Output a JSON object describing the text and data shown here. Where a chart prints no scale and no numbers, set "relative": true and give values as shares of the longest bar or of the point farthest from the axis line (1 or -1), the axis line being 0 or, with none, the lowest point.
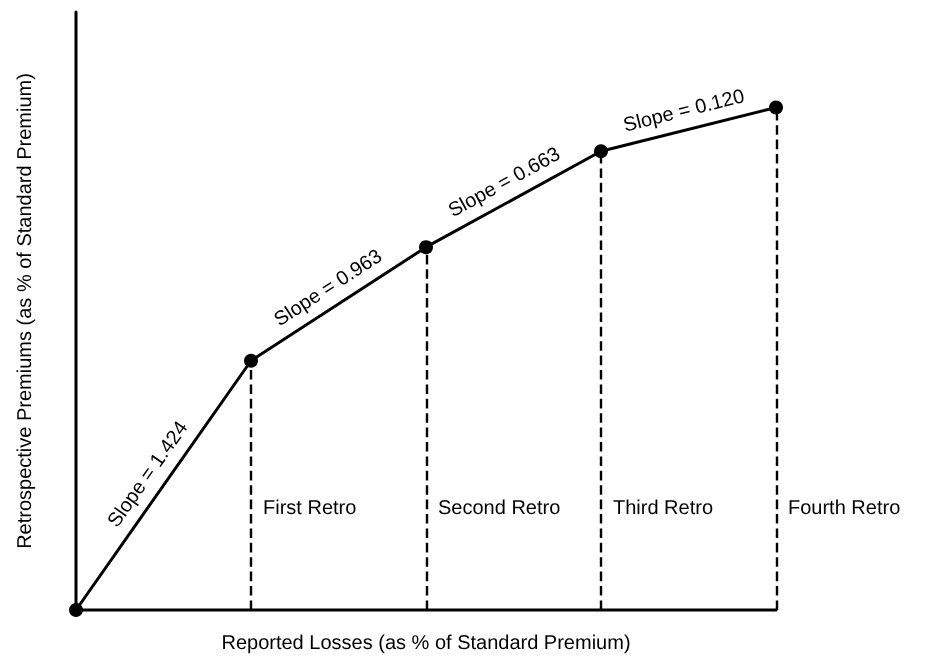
{
  "chart_data": {
    "type": "line",
    "relative": true,
    "xlabel": "Reported Losses (as % of Standard Premium)",
    "ylabel": "Retrospective Premiums (as % of Standard Premium)",
    "categories": [
      null,
      null,
      null,
      null,
      null
    ],
    "series": [
      {
        "color": "#000000",
        "values": [
          0,
          0.496,
          0.722,
          0.913,
          1
        ]
      }
    ],
    "marker": "circle",
    "line_style": "solid",
    "tick_labels": false,
    "ref_lines": [
      {
        "axis": "x",
        "value": null,
        "label": "First Retro",
        "line_style": "dashed",
        "color": "#000000"
      },
      {
        "axis": "x",
        "value": null,
        "label": "Second Retro",
        "line_style": "dashed",
        "color": "#000000"
      },
      {
        "axis": "x",
        "value": null,
        "label": "Third Retro",
        "line_style": "dashed",
        "color": "#000000"
      },
      {
        "axis": "x",
        "value": null,
        "label": "Fourth Retro",
        "line_style": "dashed",
        "color": "#000000"
      }
    ],
    "annotations": [
      "Slope = 1.424",
      "Slope = 0.963",
      "Slope = 0.663",
      "Slope = 0.120"
    ]
  }
}
